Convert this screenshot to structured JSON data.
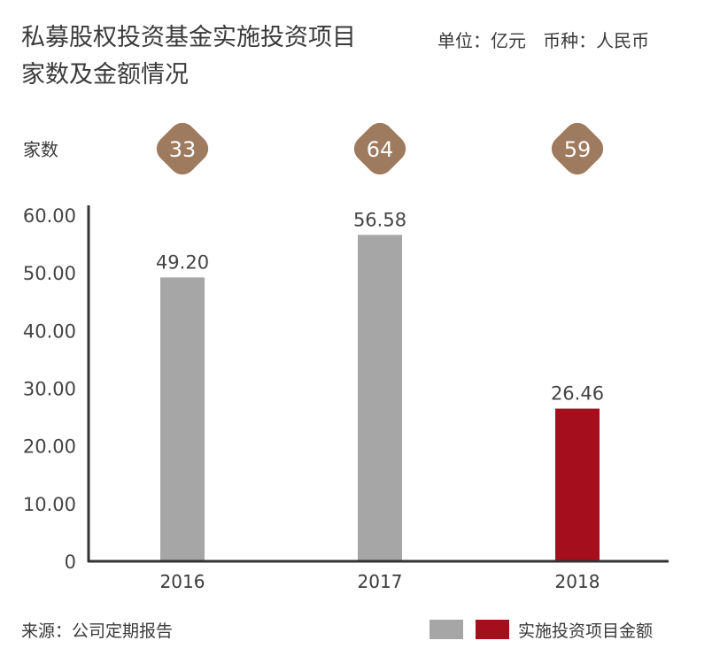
{
  "title_line1": "私募股权投资基金实施投资项目",
  "title_line2": "家数及金额情况",
  "unit_text": "单位：亿元   币种：人民币",
  "source_text": "来源：公司定期报告",
  "legend_label": "实施投资项目金额",
  "colors": {
    "gray_bar": "#a6a6a6",
    "red_bar": "#a50f1d",
    "badge": "#9e7a5e",
    "axis": "#333333"
  },
  "chart_data": {
    "type": "bar",
    "categories": [
      "2016",
      "2017",
      "2018"
    ],
    "values": [
      49.2,
      56.58,
      26.46
    ],
    "value_labels": [
      "49.20",
      "56.58",
      "26.46"
    ],
    "bar_colors": [
      "gray",
      "gray",
      "red"
    ],
    "count_label": "家数",
    "counts": [
      "33",
      "64",
      "59"
    ],
    "ylim": [
      0,
      60
    ],
    "yticks": [
      "0",
      "10.00",
      "20.00",
      "30.00",
      "40.00",
      "50.00",
      "60.00"
    ],
    "grid": false
  }
}
